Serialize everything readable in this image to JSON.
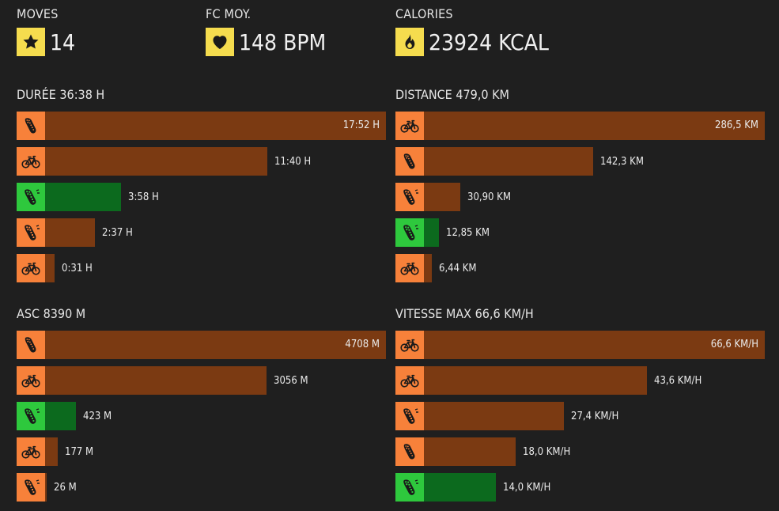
{
  "colors": {
    "background": "#1f1f1f",
    "accent_yellow": "#f5dc4e",
    "orange": "#f7813a",
    "brown": "#7b3a12",
    "green_icon": "#2ec83d",
    "green_bar": "#0c6a1e"
  },
  "stats": [
    {
      "label": "MOVES",
      "value": "14",
      "icon": "star-icon"
    },
    {
      "label": "FC MOY.",
      "value": "148 BPM",
      "icon": "heart-icon"
    },
    {
      "label": "CALORIES",
      "value": "23924 KCAL",
      "icon": "flame-icon"
    }
  ],
  "sections": [
    {
      "title": "DURÉE 36:38 H",
      "rows": [
        {
          "activity": "running-icon",
          "color": "orange",
          "fraction": 1.0,
          "value": "17:52 H"
        },
        {
          "activity": "cycling-icon",
          "color": "orange",
          "fraction": 0.6525,
          "value": "11:40 H"
        },
        {
          "activity": "trail-running-icon",
          "color": "green",
          "fraction": 0.222,
          "value": "3:58 H"
        },
        {
          "activity": "trail-running-icon",
          "color": "orange",
          "fraction": 0.1465,
          "value": "2:37 H"
        },
        {
          "activity": "cycling-icon",
          "color": "orange",
          "fraction": 0.0289,
          "value": "0:31 H"
        }
      ]
    },
    {
      "title": "DISTANCE 479,0 KM",
      "rows": [
        {
          "activity": "cycling-icon",
          "color": "orange",
          "fraction": 1.0,
          "value": "286,5 KM"
        },
        {
          "activity": "running-icon",
          "color": "orange",
          "fraction": 0.4967,
          "value": "142,3 KM"
        },
        {
          "activity": "trail-running-icon",
          "color": "orange",
          "fraction": 0.1078,
          "value": "30,90 KM"
        },
        {
          "activity": "trail-running-icon",
          "color": "green",
          "fraction": 0.0449,
          "value": "12,85 KM"
        },
        {
          "activity": "cycling-icon",
          "color": "orange",
          "fraction": 0.0225,
          "value": "6,44 KM"
        }
      ]
    },
    {
      "title": "ASC 8390 M",
      "rows": [
        {
          "activity": "running-icon",
          "color": "orange",
          "fraction": 1.0,
          "value": "4708 M"
        },
        {
          "activity": "cycling-icon",
          "color": "orange",
          "fraction": 0.6491,
          "value": "3056 M"
        },
        {
          "activity": "trail-running-icon",
          "color": "green",
          "fraction": 0.0898,
          "value": "423 M"
        },
        {
          "activity": "cycling-icon",
          "color": "orange",
          "fraction": 0.0376,
          "value": "177 M"
        },
        {
          "activity": "trail-running-icon",
          "color": "orange",
          "fraction": 0.0055,
          "value": "26 M"
        }
      ]
    },
    {
      "title": "VITESSE MAX 66,6 KM/H",
      "rows": [
        {
          "activity": "cycling-icon",
          "color": "orange",
          "fraction": 1.0,
          "value": "66,6 KM/H"
        },
        {
          "activity": "cycling-icon",
          "color": "orange",
          "fraction": 0.6547,
          "value": "43,6 KM/H"
        },
        {
          "activity": "trail-running-icon",
          "color": "orange",
          "fraction": 0.4114,
          "value": "27,4 KM/H"
        },
        {
          "activity": "running-icon",
          "color": "orange",
          "fraction": 0.2703,
          "value": "18,0 KM/H"
        },
        {
          "activity": "trail-running-icon",
          "color": "green",
          "fraction": 0.2102,
          "value": "14,0 KM/H"
        }
      ]
    }
  ]
}
